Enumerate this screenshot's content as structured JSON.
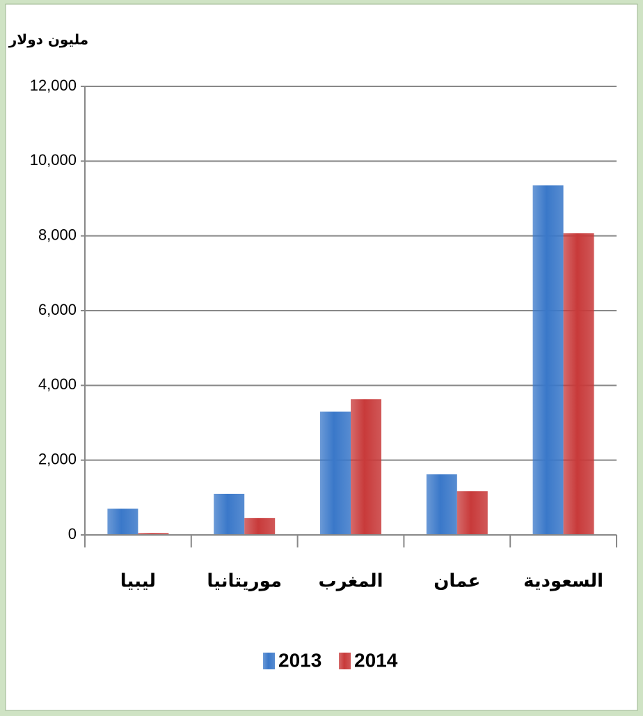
{
  "chart_data": {
    "type": "bar",
    "y_label": "مليون دولار",
    "categories": [
      "ليبيا",
      "موريتانيا",
      "المغرب",
      "عمان",
      "السعودية"
    ],
    "series": [
      {
        "name": "2013",
        "color": "#3a78c9",
        "values": [
          700,
          1100,
          3300,
          1620,
          9350
        ]
      },
      {
        "name": "2014",
        "color": "#c83a3a",
        "values": [
          50,
          450,
          3630,
          1170,
          8070
        ]
      }
    ],
    "ylim": [
      0,
      12000
    ],
    "yticks": [
      {
        "value": 0,
        "label": "0"
      },
      {
        "value": 2000,
        "label": "2,000"
      },
      {
        "value": 4000,
        "label": "4,000"
      },
      {
        "value": 6000,
        "label": "6,000"
      },
      {
        "value": 8000,
        "label": "8,000"
      },
      {
        "value": 10000,
        "label": "10,000"
      },
      {
        "value": 12000,
        "label": "12,000"
      }
    ],
    "grid": true,
    "legend": "bottom"
  }
}
